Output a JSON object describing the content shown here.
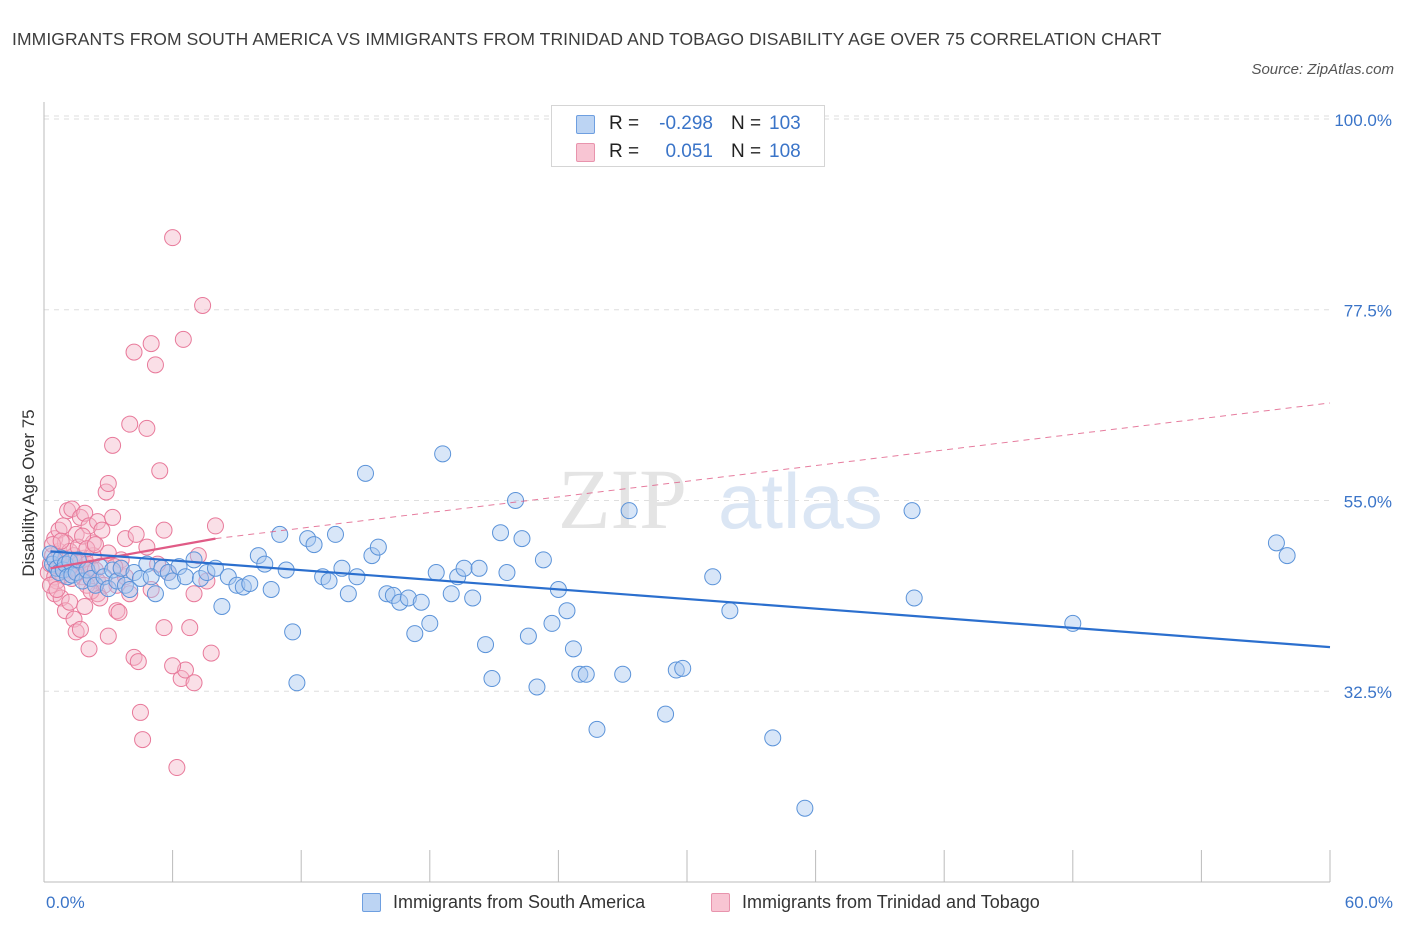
{
  "title": "IMMIGRANTS FROM SOUTH AMERICA VS IMMIGRANTS FROM TRINIDAD AND TOBAGO DISABILITY AGE OVER 75 CORRELATION CHART",
  "source": "Source: ZipAtlas.com",
  "watermark": {
    "zip": "ZIP",
    "atlas": "atlas"
  },
  "legend": {
    "rows": [
      {
        "r_label": "R =",
        "r_value": "-0.298",
        "n_label": "N =",
        "n_value": "103"
      },
      {
        "r_label": "R =",
        "r_value": "0.051",
        "n_label": "N =",
        "n_value": "108"
      }
    ]
  },
  "bottom_legend": [
    "Immigrants from South America",
    "Immigrants from Trinidad and Tobago"
  ],
  "colors": {
    "blue_fill": "#a9c8f0",
    "blue_stroke": "#5b93d9",
    "blue_line": "#2b6fce",
    "pink_fill": "#f5b8c9",
    "pink_stroke": "#e8799a",
    "pink_line": "#e05b86",
    "axis_text": "#3a74c8",
    "grid": "#dedede"
  },
  "chart_data": {
    "type": "scatter",
    "title": "IMMIGRANTS FROM SOUTH AMERICA VS IMMIGRANTS FROM TRINIDAD AND TOBAGO DISABILITY AGE OVER 75 CORRELATION CHART",
    "xlabel": "",
    "ylabel": "Disability Age Over 75",
    "xlim": [
      0,
      60
    ],
    "ylim": [
      10,
      102
    ],
    "x_tick_labels": [
      "0.0%",
      "60.0%"
    ],
    "y_ticks": [
      32.5,
      55.0,
      77.5,
      100.0
    ],
    "y_tick_labels": [
      "32.5%",
      "55.0%",
      "77.5%",
      "100.0%"
    ],
    "grid": true,
    "legend_position": "top-center",
    "series": [
      {
        "name": "Immigrants from South America",
        "R": -0.298,
        "N": 103,
        "trend": {
          "x": [
            0.3,
            60
          ],
          "y": [
            49.0,
            37.7
          ]
        },
        "points": [
          [
            0.3,
            48.7
          ],
          [
            0.4,
            47.5
          ],
          [
            0.5,
            48.0
          ],
          [
            0.6,
            47.0
          ],
          [
            0.7,
            46.5
          ],
          [
            0.8,
            48.2
          ],
          [
            0.9,
            46.8
          ],
          [
            1.0,
            47.5
          ],
          [
            1.1,
            46.0
          ],
          [
            1.2,
            47.8
          ],
          [
            1.3,
            46.2
          ],
          [
            1.5,
            46.5
          ],
          [
            1.6,
            48.0
          ],
          [
            1.8,
            45.5
          ],
          [
            2.0,
            46.8
          ],
          [
            2.2,
            45.8
          ],
          [
            2.4,
            45.0
          ],
          [
            2.6,
            47.2
          ],
          [
            2.8,
            46.0
          ],
          [
            3.0,
            44.6
          ],
          [
            3.2,
            46.8
          ],
          [
            3.4,
            45.5
          ],
          [
            3.6,
            47.0
          ],
          [
            3.8,
            45.0
          ],
          [
            4.0,
            44.5
          ],
          [
            4.2,
            46.5
          ],
          [
            4.5,
            45.8
          ],
          [
            4.8,
            47.5
          ],
          [
            5.0,
            46.0
          ],
          [
            5.2,
            44.0
          ],
          [
            5.5,
            47.0
          ],
          [
            5.8,
            46.5
          ],
          [
            6.0,
            45.5
          ],
          [
            6.3,
            47.2
          ],
          [
            6.6,
            46.0
          ],
          [
            7.0,
            48.0
          ],
          [
            7.3,
            45.8
          ],
          [
            7.6,
            46.5
          ],
          [
            8.0,
            47.0
          ],
          [
            8.3,
            42.5
          ],
          [
            8.6,
            46.0
          ],
          [
            9.0,
            45.0
          ],
          [
            9.3,
            44.8
          ],
          [
            9.6,
            45.2
          ],
          [
            10.0,
            48.5
          ],
          [
            10.3,
            47.5
          ],
          [
            10.6,
            44.5
          ],
          [
            11.0,
            51.0
          ],
          [
            11.3,
            46.8
          ],
          [
            11.6,
            39.5
          ],
          [
            11.8,
            33.5
          ],
          [
            12.3,
            50.5
          ],
          [
            12.6,
            49.8
          ],
          [
            13.0,
            46.0
          ],
          [
            13.3,
            45.5
          ],
          [
            13.6,
            51.0
          ],
          [
            13.9,
            47.0
          ],
          [
            14.2,
            44.0
          ],
          [
            14.6,
            46.0
          ],
          [
            15.0,
            58.2
          ],
          [
            15.3,
            48.5
          ],
          [
            15.6,
            49.5
          ],
          [
            16.0,
            44.0
          ],
          [
            16.3,
            43.8
          ],
          [
            16.6,
            43.0
          ],
          [
            17.0,
            43.5
          ],
          [
            17.3,
            39.3
          ],
          [
            17.6,
            43.0
          ],
          [
            18.0,
            40.5
          ],
          [
            18.3,
            46.5
          ],
          [
            18.6,
            60.5
          ],
          [
            19.0,
            44.0
          ],
          [
            19.3,
            46.0
          ],
          [
            19.6,
            47.0
          ],
          [
            20.0,
            43.5
          ],
          [
            20.3,
            47.0
          ],
          [
            20.6,
            38.0
          ],
          [
            20.9,
            34.0
          ],
          [
            21.3,
            51.2
          ],
          [
            21.6,
            46.5
          ],
          [
            22.0,
            55.0
          ],
          [
            22.3,
            50.5
          ],
          [
            22.6,
            39.0
          ],
          [
            23.0,
            33.0
          ],
          [
            23.3,
            48.0
          ],
          [
            23.7,
            40.5
          ],
          [
            24.0,
            44.5
          ],
          [
            24.4,
            42.0
          ],
          [
            24.7,
            37.5
          ],
          [
            25.0,
            34.5
          ],
          [
            25.3,
            34.5
          ],
          [
            25.8,
            28.0
          ],
          [
            27.0,
            34.5
          ],
          [
            27.3,
            53.8
          ],
          [
            29.0,
            29.8
          ],
          [
            29.5,
            35.0
          ],
          [
            29.8,
            35.2
          ],
          [
            31.2,
            46.0
          ],
          [
            32.0,
            42.0
          ],
          [
            34.0,
            27.0
          ],
          [
            35.5,
            18.7
          ],
          [
            40.5,
            53.8
          ],
          [
            40.6,
            43.5
          ],
          [
            48.0,
            40.5
          ],
          [
            57.5,
            50.0
          ],
          [
            58.0,
            48.5
          ]
        ]
      },
      {
        "name": "Immigrants from Trinidad and Tobago",
        "R": 0.051,
        "N": 108,
        "trend": {
          "x": [
            0.3,
            8.0
          ],
          "y": [
            47.0,
            50.5
          ],
          "dashed_to": [
            60,
            66.5
          ]
        },
        "points": [
          [
            0.2,
            46.5
          ],
          [
            0.3,
            47.5
          ],
          [
            0.4,
            48.5
          ],
          [
            0.5,
            46.0
          ],
          [
            0.6,
            47.0
          ],
          [
            0.7,
            49.0
          ],
          [
            0.8,
            47.5
          ],
          [
            0.9,
            46.2
          ],
          [
            1.0,
            48.0
          ],
          [
            1.1,
            46.8
          ],
          [
            1.2,
            47.2
          ],
          [
            1.3,
            45.8
          ],
          [
            1.4,
            48.5
          ],
          [
            1.5,
            47.0
          ],
          [
            1.6,
            46.5
          ],
          [
            1.7,
            47.8
          ],
          [
            1.8,
            46.0
          ],
          [
            1.9,
            48.2
          ],
          [
            2.0,
            47.5
          ],
          [
            2.1,
            46.3
          ],
          [
            2.2,
            47.0
          ],
          [
            2.3,
            48.5
          ],
          [
            2.4,
            46.8
          ],
          [
            2.5,
            45.5
          ],
          [
            0.5,
            44.0
          ],
          [
            0.6,
            45.5
          ],
          [
            0.8,
            43.5
          ],
          [
            1.0,
            42.0
          ],
          [
            1.2,
            43.0
          ],
          [
            1.4,
            41.0
          ],
          [
            1.5,
            39.5
          ],
          [
            1.7,
            39.8
          ],
          [
            1.9,
            42.5
          ],
          [
            2.1,
            37.5
          ],
          [
            0.5,
            50.5
          ],
          [
            0.7,
            51.5
          ],
          [
            0.9,
            52.0
          ],
          [
            1.1,
            53.8
          ],
          [
            1.3,
            54.0
          ],
          [
            1.5,
            51.0
          ],
          [
            1.7,
            53.0
          ],
          [
            1.9,
            53.5
          ],
          [
            2.1,
            52.0
          ],
          [
            2.3,
            50.0
          ],
          [
            2.5,
            52.5
          ],
          [
            2.7,
            51.5
          ],
          [
            2.9,
            56.0
          ],
          [
            3.0,
            57.0
          ],
          [
            3.2,
            53.0
          ],
          [
            3.4,
            45.0
          ],
          [
            3.6,
            48.0
          ],
          [
            3.8,
            46.0
          ],
          [
            4.0,
            44.0
          ],
          [
            4.2,
            36.5
          ],
          [
            4.4,
            36.0
          ],
          [
            4.6,
            26.8
          ],
          [
            4.8,
            63.5
          ],
          [
            5.0,
            73.5
          ],
          [
            5.2,
            71.0
          ],
          [
            5.4,
            58.5
          ],
          [
            5.6,
            51.5
          ],
          [
            5.8,
            46.5
          ],
          [
            6.0,
            86.0
          ],
          [
            6.2,
            23.5
          ],
          [
            6.4,
            34.0
          ],
          [
            6.6,
            35.0
          ],
          [
            6.8,
            40.0
          ],
          [
            7.0,
            44.0
          ],
          [
            7.2,
            48.5
          ],
          [
            7.4,
            78.0
          ],
          [
            7.6,
            45.5
          ],
          [
            7.8,
            37.0
          ],
          [
            8.0,
            52.0
          ],
          [
            2.5,
            44.0
          ],
          [
            2.8,
            45.0
          ],
          [
            3.0,
            39.0
          ],
          [
            3.2,
            61.5
          ],
          [
            3.4,
            42.0
          ],
          [
            3.6,
            47.0
          ],
          [
            3.8,
            50.5
          ],
          [
            4.0,
            64.0
          ],
          [
            4.2,
            72.5
          ],
          [
            4.5,
            30.0
          ],
          [
            4.8,
            49.5
          ],
          [
            5.0,
            44.5
          ],
          [
            5.3,
            47.5
          ],
          [
            5.6,
            40.0
          ],
          [
            6.0,
            35.5
          ],
          [
            6.5,
            74.0
          ],
          [
            7.0,
            33.5
          ],
          [
            3.0,
            48.8
          ],
          [
            3.3,
            47.2
          ],
          [
            2.0,
            45.0
          ],
          [
            2.2,
            44.3
          ],
          [
            2.6,
            43.5
          ],
          [
            1.0,
            50.0
          ],
          [
            1.2,
            49.0
          ],
          [
            1.4,
            48.0
          ],
          [
            1.6,
            49.5
          ],
          [
            1.8,
            50.8
          ],
          [
            2.0,
            49.3
          ],
          [
            2.4,
            49.8
          ],
          [
            0.3,
            45.0
          ],
          [
            0.4,
            49.8
          ],
          [
            0.6,
            44.5
          ],
          [
            0.8,
            50.2
          ],
          [
            3.5,
            41.8
          ],
          [
            4.3,
            51.0
          ]
        ]
      }
    ]
  }
}
